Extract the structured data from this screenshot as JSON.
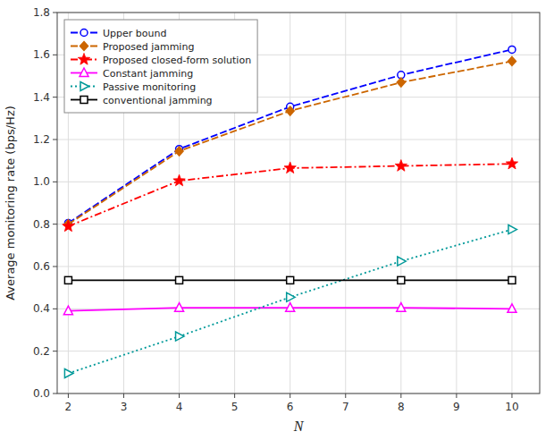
{
  "chart_data": {
    "type": "line",
    "x_label": "N",
    "y_label": "Average monitoring rate (bps/Hz)",
    "x": [
      2,
      4,
      6,
      8,
      10
    ],
    "series": [
      {
        "name": "Upper bound",
        "color": "#0000FF",
        "marker": "circle",
        "line_style": "dashed",
        "values": [
          0.805,
          1.155,
          1.355,
          1.505,
          1.625
        ]
      },
      {
        "name": "Proposed jamming",
        "color": "#CC6600",
        "marker": "diamond",
        "line_style": "dashed",
        "values": [
          0.8,
          1.145,
          1.335,
          1.47,
          1.57
        ]
      },
      {
        "name": "Proposed closed-form solution",
        "color": "#FF0000",
        "marker": "star",
        "line_style": "dashdot",
        "values": [
          0.79,
          1.005,
          1.065,
          1.075,
          1.085
        ]
      },
      {
        "name": "Constant jamming",
        "color": "#FF00FF",
        "marker": "triangle-up",
        "line_style": "solid",
        "values": [
          0.39,
          0.405,
          0.405,
          0.405,
          0.4
        ]
      },
      {
        "name": "Passive monitoring",
        "color": "#009999",
        "marker": "triangle-right",
        "line_style": "dotted",
        "values": [
          0.095,
          0.27,
          0.455,
          0.625,
          0.775
        ]
      },
      {
        "name": "conventional jamming",
        "color": "#000000",
        "marker": "square",
        "line_style": "solid",
        "values": [
          0.535,
          0.535,
          0.535,
          0.535,
          0.535
        ]
      }
    ],
    "xlim": [
      1.8,
      10.5
    ],
    "ylim": [
      0,
      1.8
    ],
    "xticks": [
      2,
      3,
      4,
      5,
      6,
      7,
      8,
      9,
      10
    ],
    "yticks": [
      {
        "value": 0,
        "label": "0.0"
      },
      0.2,
      0.4,
      0.6,
      0.8,
      {
        "value": 1,
        "label": "1.0"
      },
      1.2,
      1.4,
      1.6,
      1.8
    ],
    "grid": true,
    "legend": "upper left"
  }
}
